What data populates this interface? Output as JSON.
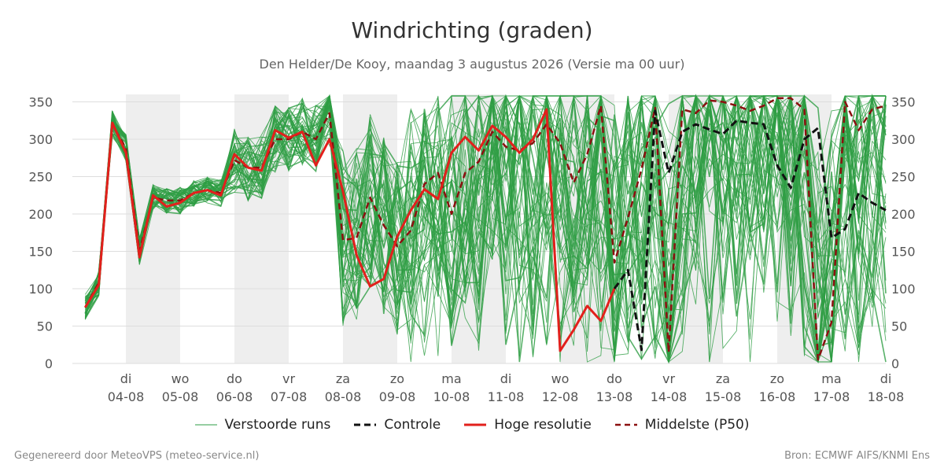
{
  "title": "Windrichting (graden)",
  "subtitle": "Den Helder/De Kooy, maandag  3 augustus 2026 (Versie ma 00 uur)",
  "footer_left": "Gegenereerd door MeteoVPS (meteo-service.nl)",
  "footer_right": "Bron: ECMWF AIFS/KNMI Ens",
  "colors": {
    "ensemble": "#2e9e44",
    "control": "#111111",
    "highres": "#e2201c",
    "median": "#8b1010",
    "band": "#eeeeee",
    "grid": "#dddddd"
  },
  "legend": [
    {
      "label": "Verstoorde runs",
      "style": "ensemble"
    },
    {
      "label": "Controle",
      "style": "control"
    },
    {
      "label": "Hoge resolutie",
      "style": "highres"
    },
    {
      "label": "Middelste (P50)",
      "style": "median"
    }
  ],
  "chart_data": {
    "type": "line",
    "ylim": [
      0,
      360
    ],
    "yticks": [
      0,
      50,
      100,
      150,
      200,
      250,
      300,
      350
    ],
    "xlim_days": [
      -0.75,
      14.0
    ],
    "grid": true,
    "legend_position": "bottom",
    "day_ticks": [
      {
        "day": "di",
        "date": "04-08"
      },
      {
        "day": "wo",
        "date": "05-08"
      },
      {
        "day": "do",
        "date": "06-08"
      },
      {
        "day": "vr",
        "date": "07-08"
      },
      {
        "day": "za",
        "date": "08-08"
      },
      {
        "day": "zo",
        "date": "09-08"
      },
      {
        "day": "ma",
        "date": "10-08"
      },
      {
        "day": "di",
        "date": "11-08"
      },
      {
        "day": "wo",
        "date": "12-08"
      },
      {
        "day": "do",
        "date": "13-08"
      },
      {
        "day": "vr",
        "date": "14-08"
      },
      {
        "day": "za",
        "date": "15-08"
      },
      {
        "day": "zo",
        "date": "16-08"
      },
      {
        "day": "ma",
        "date": "17-08"
      },
      {
        "day": "di",
        "date": "18-08"
      }
    ],
    "weekend_bands": [
      [
        0,
        1
      ],
      [
        2,
        3
      ],
      [
        4,
        5
      ],
      [
        6,
        7
      ],
      [
        8,
        9
      ],
      [
        10,
        11
      ],
      [
        12,
        13
      ]
    ],
    "series": [
      {
        "name": "Hoge resolutie",
        "style": "highres",
        "x": [
          -0.75,
          -0.5,
          -0.25,
          0,
          0.25,
          0.5,
          0.75,
          1,
          1.25,
          1.5,
          1.75,
          2,
          2.25,
          2.5,
          2.75,
          3,
          3.25,
          3.5,
          3.75,
          4,
          4.25,
          4.5,
          4.75,
          5,
          5.25,
          5.5,
          5.75,
          6,
          6.25,
          6.5,
          6.75,
          7,
          7.25,
          7.5,
          7.75,
          8,
          8.25,
          8.5,
          8.75,
          9
        ],
        "values": [
          75,
          105,
          322,
          282,
          142,
          225,
          210,
          215,
          228,
          232,
          225,
          280,
          262,
          258,
          312,
          302,
          310,
          265,
          300,
          230,
          145,
          103,
          113,
          170,
          205,
          233,
          220,
          282,
          303,
          285,
          318,
          303,
          282,
          300,
          340,
          17,
          45,
          77,
          57,
          100
        ]
      },
      {
        "name": "Controle",
        "style": "control",
        "x": [
          9,
          9.25,
          9.5,
          9.75,
          10,
          10.25,
          10.5,
          10.75,
          11,
          11.25,
          11.5,
          11.75,
          12,
          12.25,
          12.5,
          12.75,
          13,
          13.25,
          13.5,
          13.75,
          14
        ],
        "values": [
          100,
          125,
          18,
          338,
          255,
          310,
          320,
          313,
          307,
          325,
          322,
          320,
          265,
          235,
          300,
          315,
          168,
          180,
          228,
          215,
          205
        ]
      },
      {
        "name": "Middelste (P50)",
        "style": "median",
        "x": [
          -0.75,
          -0.5,
          -0.25,
          0,
          0.25,
          0.5,
          0.75,
          1,
          1.25,
          1.5,
          1.75,
          2,
          2.25,
          2.5,
          2.75,
          3,
          3.25,
          3.5,
          3.75,
          4,
          4.25,
          4.5,
          4.75,
          5,
          5.25,
          5.5,
          5.75,
          6,
          6.25,
          6.5,
          6.75,
          7,
          7.25,
          7.5,
          7.75,
          8,
          8.25,
          8.5,
          8.75,
          9,
          9.25,
          9.5,
          9.75,
          10,
          10.25,
          10.5,
          10.75,
          11,
          11.25,
          11.5,
          11.75,
          12,
          12.25,
          12.5,
          12.75,
          13,
          13.25,
          13.5,
          13.75,
          14
        ],
        "values": [
          75,
          108,
          320,
          288,
          150,
          222,
          218,
          218,
          228,
          232,
          228,
          272,
          262,
          262,
          300,
          300,
          310,
          300,
          335,
          165,
          168,
          222,
          185,
          157,
          178,
          240,
          255,
          200,
          255,
          270,
          310,
          290,
          285,
          295,
          320,
          295,
          242,
          280,
          345,
          135,
          195,
          260,
          342,
          15,
          340,
          335,
          352,
          350,
          345,
          338,
          345,
          355,
          355,
          340,
          5,
          55,
          350,
          312,
          340,
          345
        ]
      }
    ]
  }
}
